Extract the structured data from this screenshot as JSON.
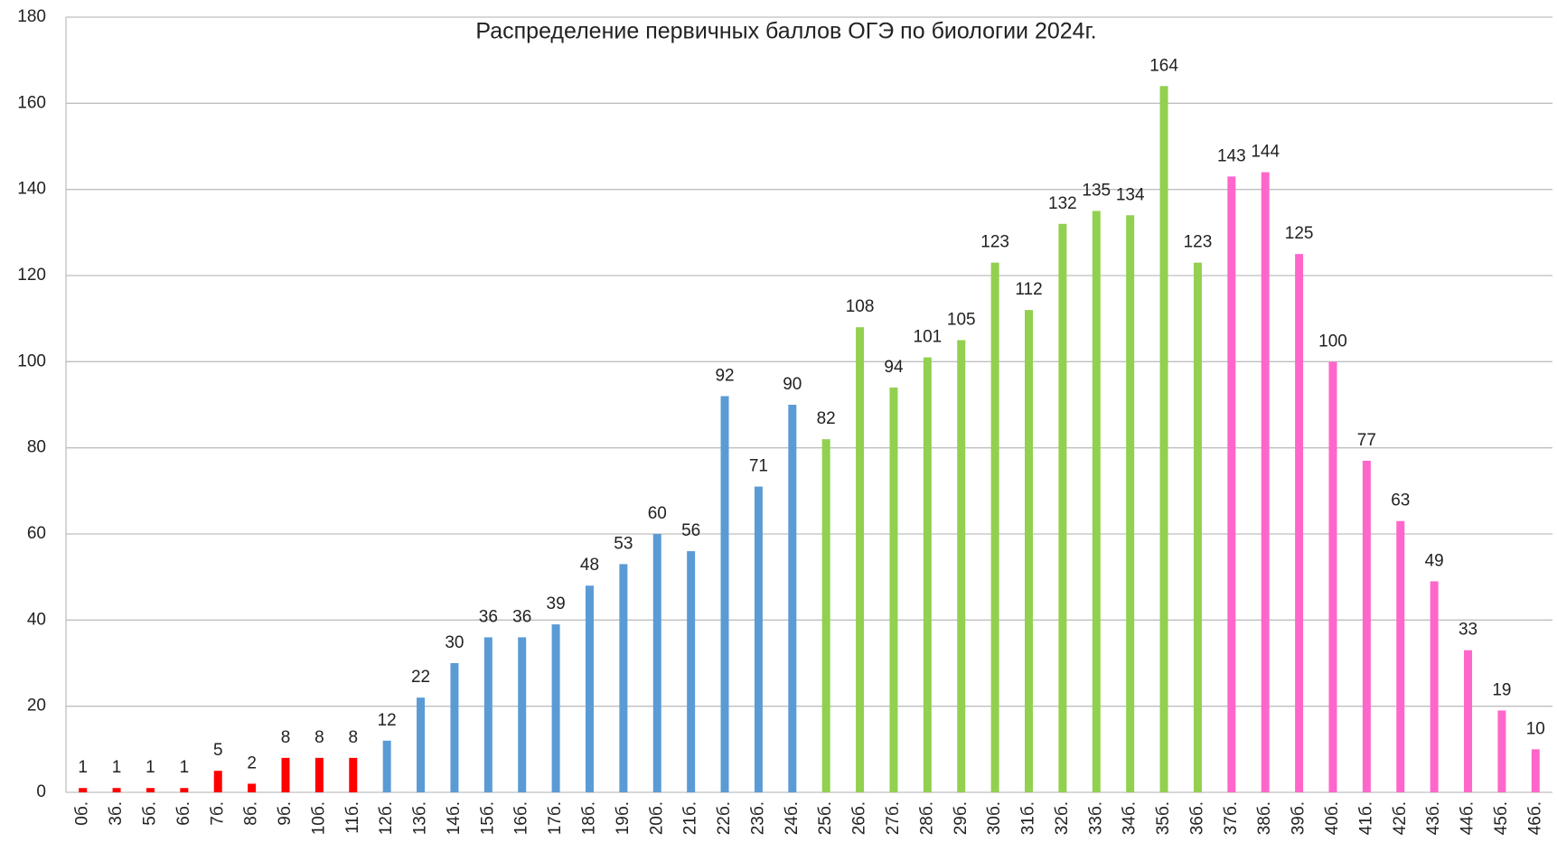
{
  "chart_data": {
    "type": "bar",
    "title": "Распределение первичных баллов ОГЭ по биологии 2024г.",
    "categories": [
      "0б.",
      "3б.",
      "5б.",
      "6б.",
      "7б.",
      "8б.",
      "9б.",
      "10б.",
      "11б.",
      "12б.",
      "13б.",
      "14б.",
      "15б.",
      "16б.",
      "17б.",
      "18б.",
      "19б.",
      "20б.",
      "21б.",
      "22б.",
      "23б.",
      "24б.",
      "25б.",
      "26б.",
      "27б.",
      "28б.",
      "29б.",
      "30б.",
      "31б.",
      "32б.",
      "33б.",
      "34б.",
      "35б.",
      "36б.",
      "37б.",
      "38б.",
      "39б.",
      "40б.",
      "41б.",
      "42б.",
      "43б.",
      "44б.",
      "45б.",
      "46б."
    ],
    "values": [
      1,
      1,
      1,
      1,
      5,
      2,
      8,
      8,
      8,
      12,
      22,
      30,
      36,
      36,
      39,
      48,
      53,
      60,
      56,
      92,
      71,
      90,
      82,
      108,
      94,
      101,
      105,
      123,
      112,
      132,
      135,
      134,
      164,
      123,
      143,
      144,
      125,
      100,
      77,
      63,
      49,
      33,
      19,
      10
    ],
    "colors": [
      "#ff0000",
      "#ff0000",
      "#ff0000",
      "#ff0000",
      "#ff0000",
      "#ff0000",
      "#ff0000",
      "#ff0000",
      "#ff0000",
      "#5b9bd5",
      "#5b9bd5",
      "#5b9bd5",
      "#5b9bd5",
      "#5b9bd5",
      "#5b9bd5",
      "#5b9bd5",
      "#5b9bd5",
      "#5b9bd5",
      "#5b9bd5",
      "#5b9bd5",
      "#5b9bd5",
      "#5b9bd5",
      "#92d050",
      "#92d050",
      "#92d050",
      "#92d050",
      "#92d050",
      "#92d050",
      "#92d050",
      "#92d050",
      "#92d050",
      "#92d050",
      "#92d050",
      "#92d050",
      "#ff66cc",
      "#ff66cc",
      "#ff66cc",
      "#ff66cc",
      "#ff66cc",
      "#ff66cc",
      "#ff66cc",
      "#ff66cc",
      "#ff66cc",
      "#ff66cc"
    ],
    "ylim": [
      0,
      180
    ],
    "yticks": [
      0,
      20,
      40,
      60,
      80,
      100,
      120,
      140,
      160,
      180
    ],
    "grid": true
  }
}
